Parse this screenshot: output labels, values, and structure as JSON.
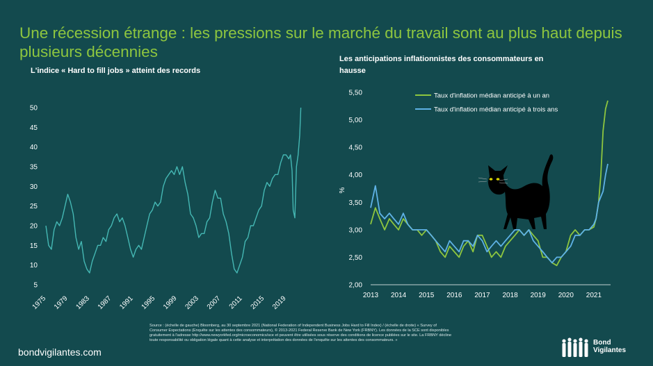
{
  "header": {
    "title": "Une récession étrange : les pressions sur le marché du travail sont au plus haut depuis plusieurs décennies"
  },
  "footer": {
    "website": "bondvigilantes.com",
    "source": "Source : (échelle de gauche) Bloomberg, au 30 septembre 2021 (National Federation of Independent Business Jobs Hard to Fill Index) / (échelle de droite) « Survey of Consumer Expectations (Enquête sur les attentes des consommateurs), © 2013-2021 Federal Reserve Bank de New York (FRBNY). Les données de la SCE sont disponibles gratuitement à l'adresse http://www.newyorkfed.org/microeconomics/sce et peuvent être utilisées sous réserve des conditions de licence publiées sur le site. La FRBNY décline toute responsabilité ou obligation légale quant à cette analyse et interprétation des données de l'enquête sur les attentes des consommateurs. »",
    "logo_text": "Bond Vigilantes"
  },
  "chart_data": [
    {
      "type": "line",
      "title": "L'indice « Hard to fill jobs » atteint des records",
      "xlabel": "",
      "ylabel": "",
      "xlim": [
        1975,
        2021.75
      ],
      "ylim": [
        5,
        50
      ],
      "x_tick_labels": [
        "1975",
        "1979",
        "1983",
        "1987",
        "1991",
        "1995",
        "1999",
        "2003",
        "2007",
        "2011",
        "2015",
        "2019"
      ],
      "y_tick_labels": [
        "5",
        "10",
        "15",
        "20",
        "25",
        "30",
        "35",
        "40",
        "45",
        "50"
      ],
      "colors": {
        "line": "#45b8b4"
      },
      "series": [
        {
          "x": [
            1975.0,
            1975.5,
            1976.0,
            1976.5,
            1977.0,
            1977.5,
            1978.0,
            1978.5,
            1979.0,
            1979.5,
            1980.0,
            1980.5,
            1981.0,
            1981.5,
            1982.0,
            1982.5,
            1983.0,
            1983.5,
            1984.0,
            1984.5,
            1985.0,
            1985.5,
            1986.0,
            1986.5,
            1987.0,
            1987.5,
            1988.0,
            1988.5,
            1989.0,
            1989.5,
            1990.0,
            1990.5,
            1991.0,
            1991.5,
            1992.0,
            1992.5,
            1993.0,
            1993.5,
            1994.0,
            1994.5,
            1995.0,
            1995.5,
            1996.0,
            1996.5,
            1997.0,
            1997.5,
            1998.0,
            1998.5,
            1999.0,
            1999.5,
            2000.0,
            2000.5,
            2001.0,
            2001.5,
            2002.0,
            2002.5,
            2003.0,
            2003.5,
            2004.0,
            2004.5,
            2005.0,
            2005.5,
            2006.0,
            2006.5,
            2007.0,
            2007.5,
            2008.0,
            2008.5,
            2009.0,
            2009.5,
            2010.0,
            2010.5,
            2011.0,
            2011.5,
            2012.0,
            2012.5,
            2013.0,
            2013.5,
            2014.0,
            2014.5,
            2015.0,
            2015.5,
            2016.0,
            2016.5,
            2017.0,
            2017.5,
            2018.0,
            2018.5,
            2019.0,
            2019.5,
            2019.8,
            2020.1,
            2020.3,
            2020.6,
            2020.9,
            2021.2,
            2021.5,
            2021.7
          ],
          "values": [
            20,
            15,
            14,
            19,
            21,
            20,
            22,
            25,
            28,
            26,
            23,
            17,
            14,
            16,
            11,
            9,
            8,
            11,
            13,
            15,
            15,
            17,
            16,
            19,
            20,
            22,
            23,
            21,
            22,
            20,
            17,
            14,
            12,
            14,
            15,
            14,
            17,
            20,
            23,
            24,
            26,
            25,
            26,
            30,
            32,
            33,
            34,
            33,
            35,
            33,
            35,
            31,
            28,
            23,
            22,
            20,
            17,
            18,
            18,
            21,
            22,
            26,
            29,
            27,
            27,
            23,
            21,
            18,
            13,
            9,
            8,
            10,
            12,
            16,
            17,
            20,
            20,
            22,
            24,
            25,
            29,
            31,
            30,
            32,
            33,
            33,
            36,
            38,
            38,
            37,
            38,
            34,
            24,
            22,
            35,
            38,
            43,
            50
          ]
        }
      ]
    },
    {
      "type": "line",
      "title": "Les anticipations inflationnistes des consommateurs en hausse",
      "xlabel": "",
      "ylabel": "%",
      "xlim": [
        2013,
        2021.6
      ],
      "ylim": [
        2.0,
        5.5
      ],
      "x_tick_labels": [
        "2013",
        "2014",
        "2015",
        "2016",
        "2017",
        "2018",
        "2019",
        "2020",
        "2021"
      ],
      "y_tick_labels": [
        "2,00",
        "2,50",
        "3,00",
        "3,50",
        "4,00",
        "4,50",
        "5,00",
        "5,50"
      ],
      "legend_position": "top-right",
      "colors": {
        "one_year": "#8ec63f",
        "three_year": "#5fb2e6"
      },
      "series": [
        {
          "name": "Taux d'inflation médian anticipé à un an",
          "x": [
            2013.0,
            2013.17,
            2013.33,
            2013.5,
            2013.67,
            2013.83,
            2014.0,
            2014.17,
            2014.33,
            2014.5,
            2014.67,
            2014.83,
            2015.0,
            2015.17,
            2015.33,
            2015.5,
            2015.67,
            2015.83,
            2016.0,
            2016.17,
            2016.33,
            2016.5,
            2016.67,
            2016.83,
            2017.0,
            2017.17,
            2017.33,
            2017.5,
            2017.67,
            2017.83,
            2018.0,
            2018.17,
            2018.33,
            2018.5,
            2018.67,
            2018.83,
            2019.0,
            2019.17,
            2019.33,
            2019.5,
            2019.67,
            2019.83,
            2020.0,
            2020.17,
            2020.33,
            2020.5,
            2020.67,
            2020.83,
            2021.0,
            2021.08,
            2021.17,
            2021.25,
            2021.33,
            2021.42,
            2021.5
          ],
          "values": [
            3.1,
            3.4,
            3.2,
            3.0,
            3.2,
            3.1,
            3.0,
            3.2,
            3.1,
            3.0,
            3.0,
            2.9,
            3.0,
            2.9,
            2.8,
            2.6,
            2.5,
            2.7,
            2.6,
            2.5,
            2.7,
            2.8,
            2.6,
            2.9,
            2.9,
            2.7,
            2.5,
            2.6,
            2.5,
            2.7,
            2.8,
            2.9,
            3.0,
            2.9,
            3.0,
            2.9,
            2.8,
            2.5,
            2.5,
            2.4,
            2.35,
            2.5,
            2.6,
            2.9,
            3.0,
            2.9,
            3.0,
            3.0,
            3.05,
            3.2,
            3.5,
            4.0,
            4.8,
            5.2,
            5.35
          ]
        },
        {
          "name": "Taux d'inflation médian anticipé à trois ans",
          "x": [
            2013.0,
            2013.17,
            2013.33,
            2013.5,
            2013.67,
            2013.83,
            2014.0,
            2014.17,
            2014.33,
            2014.5,
            2014.67,
            2014.83,
            2015.0,
            2015.17,
            2015.33,
            2015.5,
            2015.67,
            2015.83,
            2016.0,
            2016.17,
            2016.33,
            2016.5,
            2016.67,
            2016.83,
            2017.0,
            2017.17,
            2017.33,
            2017.5,
            2017.67,
            2017.83,
            2018.0,
            2018.17,
            2018.33,
            2018.5,
            2018.67,
            2018.83,
            2019.0,
            2019.17,
            2019.33,
            2019.5,
            2019.67,
            2019.83,
            2020.0,
            2020.17,
            2020.33,
            2020.5,
            2020.67,
            2020.83,
            2021.0,
            2021.08,
            2021.17,
            2021.25,
            2021.33,
            2021.42,
            2021.5
          ],
          "values": [
            3.4,
            3.8,
            3.3,
            3.2,
            3.3,
            3.2,
            3.1,
            3.3,
            3.1,
            3.0,
            3.0,
            3.0,
            3.0,
            2.9,
            2.8,
            2.7,
            2.6,
            2.8,
            2.7,
            2.6,
            2.8,
            2.8,
            2.7,
            2.9,
            2.8,
            2.6,
            2.7,
            2.8,
            2.7,
            2.8,
            2.9,
            3.0,
            3.0,
            2.9,
            3.0,
            2.8,
            2.7,
            2.6,
            2.5,
            2.4,
            2.5,
            2.5,
            2.6,
            2.7,
            2.9,
            2.9,
            3.0,
            3.0,
            3.1,
            3.2,
            3.5,
            3.6,
            3.7,
            4.0,
            4.2
          ]
        }
      ]
    }
  ]
}
